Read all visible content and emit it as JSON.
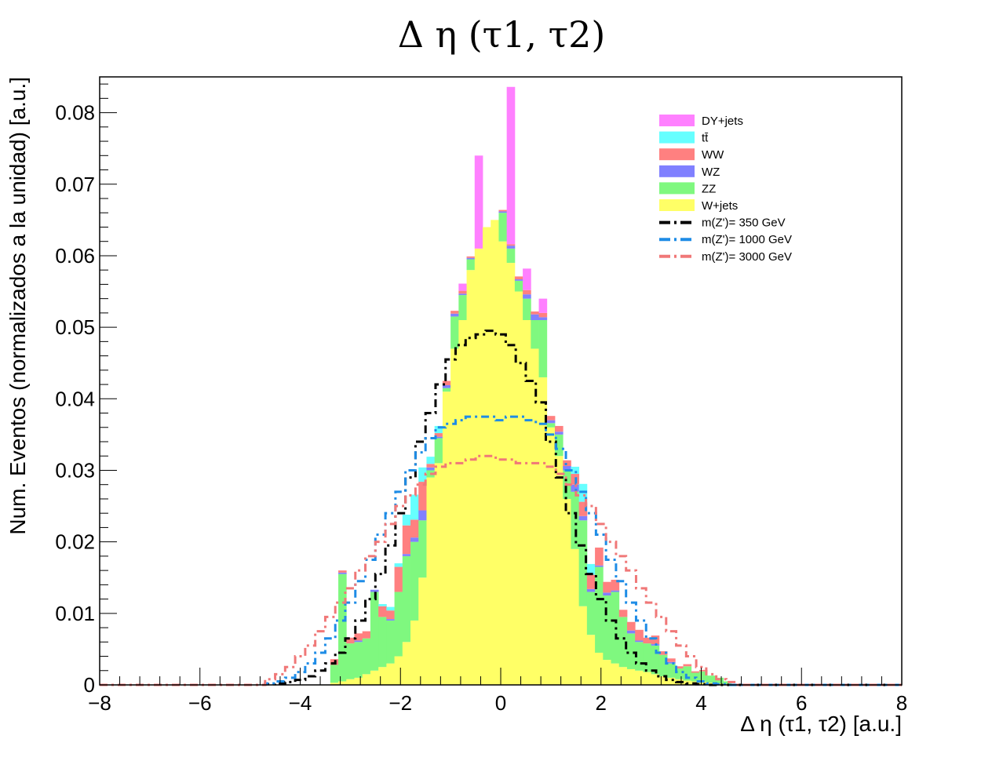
{
  "chart_data": {
    "type": "bar",
    "title": "Δ η (τ1, τ2)",
    "xlabel": "Δ η (τ1, τ2) [a.u.]",
    "ylabel": "Num. Eventos (normalizados a la unidad) [a.u.]",
    "xlim": [
      -8,
      8
    ],
    "ylim": [
      0,
      0.085
    ],
    "x_ticks": [
      "−8",
      "−6",
      "−4",
      "−2",
      "0",
      "2",
      "4",
      "6",
      "8"
    ],
    "y_ticks": [
      "0",
      "0.01",
      "0.02",
      "0.03",
      "0.04",
      "0.05",
      "0.06",
      "0.07",
      "0.08"
    ],
    "grid": false,
    "legend_position": "top-right",
    "stacked": true,
    "x": [
      -3.32,
      -3.16,
      -3.0,
      -2.84,
      -2.68,
      -2.52,
      -2.36,
      -2.2,
      -2.04,
      -1.88,
      -1.72,
      -1.56,
      -1.4,
      -1.24,
      -1.08,
      -0.92,
      -0.76,
      -0.6,
      -0.44,
      -0.28,
      -0.12,
      0.04,
      0.2,
      0.36,
      0.52,
      0.68,
      0.84,
      1.0,
      1.16,
      1.32,
      1.48,
      1.64,
      1.8,
      1.96,
      2.12,
      2.28,
      2.44,
      2.6,
      2.76,
      2.92,
      3.08,
      3.24,
      3.4,
      3.56,
      3.72,
      3.88,
      4.04,
      4.2,
      4.36,
      4.52
    ],
    "series": [
      {
        "name": "W+jets",
        "color": "#ffff66",
        "values": [
          0.0003,
          0.0005,
          0.0008,
          0.001,
          0.0015,
          0.002,
          0.0025,
          0.003,
          0.004,
          0.006,
          0.009,
          0.015,
          0.029,
          0.031,
          0.041,
          0.047,
          0.051,
          0.058,
          0.061,
          0.064,
          0.065,
          0.062,
          0.059,
          0.055,
          0.051,
          0.047,
          0.043,
          0.036,
          0.032,
          0.026,
          0.019,
          0.011,
          0.007,
          0.0045,
          0.0035,
          0.003,
          0.0025,
          0.0022,
          0.002,
          0.0018,
          0.0015,
          0.0012,
          0.001,
          0.0008,
          0.0006,
          0.0005,
          0.0004,
          0.0003,
          0.0002,
          0.0001
        ]
      },
      {
        "name": "ZZ",
        "color": "#7ff87f",
        "values": [
          0.0025,
          0.015,
          0.005,
          0.005,
          0.005,
          0.011,
          0.007,
          0.006,
          0.009,
          0.012,
          0.011,
          0.008,
          0.001,
          0.0035,
          0.0005,
          0.0045,
          0.0035,
          0.0015,
          0.0,
          0.0,
          0.0,
          0.004,
          0.002,
          0.0015,
          0.003,
          0.004,
          0.008,
          0.0006,
          0.003,
          0.004,
          0.008,
          0.012,
          0.006,
          0.012,
          0.009,
          0.01,
          0.007,
          0.005,
          0.004,
          0.004,
          0.004,
          0.003,
          0.002,
          0.0015,
          0.002,
          0.0012,
          0.0015,
          0.001,
          0.0008,
          0.0004
        ]
      },
      {
        "name": "WZ",
        "color": "#8080ff",
        "values": [
          0.0,
          0.0002,
          0.0,
          0.0002,
          0.0,
          0.0003,
          0.0,
          0.0002,
          0.0,
          0.0003,
          0.0006,
          0.0014,
          0.0004,
          0.0002,
          0.0004,
          0.0004,
          0.0002,
          0.0002,
          0.0,
          0.0,
          0.0,
          0.0002,
          0.0004,
          0.0002,
          0.0006,
          0.0008,
          0.0004,
          0.0004,
          0.0004,
          0.0006,
          0.001,
          0.0006,
          0.0004,
          0.0002,
          0.0004,
          0.0002,
          0.0,
          0.0004,
          0.0002,
          0.0,
          0.0002,
          0.0,
          0.0002,
          0.0,
          0.0,
          0.0,
          0.0,
          0.0,
          0.0,
          0.0
        ]
      },
      {
        "name": "WW",
        "color": "#ff8080",
        "values": [
          0.0008,
          0.0003,
          0.0008,
          0.001,
          0.001,
          0.0,
          0.0015,
          0.0012,
          0.0035,
          0.004,
          0.0025,
          0.004,
          0.0005,
          0.0005,
          0.0006,
          0.0004,
          0.0004,
          0.0002,
          0.0,
          0.0,
          0.0,
          0.0002,
          0.0002,
          0.0004,
          0.0006,
          0.0004,
          0.0006,
          0.0006,
          0.0008,
          0.0008,
          0.0015,
          0.002,
          0.002,
          0.0025,
          0.0015,
          0.0015,
          0.001,
          0.0012,
          0.0015,
          0.0008,
          0.0012,
          0.0005,
          0.0005,
          0.0003,
          0.0003,
          0.0002,
          0.0002,
          0.0,
          0.0,
          0.0
        ]
      },
      {
        "name": "tt̄",
        "color": "#66ffff",
        "values": [
          0.0,
          0.0,
          0.0,
          0.0,
          0.0,
          0.0,
          0.0003,
          0.0005,
          0.0005,
          0.0015,
          0.0035,
          0.002,
          0.001,
          0.001,
          0.0,
          0.0,
          0.0,
          0.0,
          0.0,
          0.0,
          0.0,
          0.0,
          0.0,
          0.0,
          0.0,
          0.0,
          0.0,
          0.0,
          0.0,
          0.0,
          0.001,
          0.0025,
          0.0015,
          0.0,
          0.0,
          0.0,
          0.0,
          0.0,
          0.0,
          0.0,
          0.0,
          0.0,
          0.0,
          0.0,
          0.0,
          0.0,
          0.0,
          0.0,
          0.0,
          0.0
        ]
      },
      {
        "name": "DY+jets",
        "color": "#ff80ff",
        "values": [
          0.0,
          0.0,
          0.0,
          0.0,
          0.0,
          0.0,
          0.0,
          0.0,
          0.0,
          0.0,
          0.0,
          0.0,
          0.0,
          0.0,
          0.0,
          0.0,
          0.001,
          0.0,
          0.013,
          0.0,
          0.0,
          0.0,
          0.022,
          0.0,
          0.003,
          0.0,
          0.002,
          0.0,
          0.0,
          0.0,
          0.0,
          0.0,
          0.0,
          0.0,
          0.0,
          0.0,
          0.0,
          0.0,
          0.0,
          0.0,
          0.0,
          0.0,
          0.0,
          0.0,
          0.0,
          0.0,
          0.0,
          0.0,
          0.0,
          0.0
        ]
      }
    ],
    "signals": [
      {
        "name": "m(Z')= 350 GeV",
        "color": "#000000",
        "x": [
          -4.6,
          -4.4,
          -4.2,
          -4.0,
          -3.8,
          -3.6,
          -3.4,
          -3.2,
          -3.0,
          -2.8,
          -2.6,
          -2.4,
          -2.2,
          -2.0,
          -1.8,
          -1.6,
          -1.4,
          -1.2,
          -1.0,
          -0.8,
          -0.6,
          -0.4,
          -0.2,
          0.0,
          0.2,
          0.4,
          0.6,
          0.8,
          1.0,
          1.2,
          1.4,
          1.6,
          1.8,
          2.0,
          2.2,
          2.4,
          2.6,
          2.8,
          3.0,
          3.2,
          3.4,
          3.6,
          3.8,
          4.0,
          4.2,
          4.4,
          4.6
        ],
        "values": [
          0.0001,
          0.0002,
          0.0004,
          0.0007,
          0.0012,
          0.002,
          0.003,
          0.0045,
          0.0065,
          0.009,
          0.012,
          0.0155,
          0.0195,
          0.024,
          0.029,
          0.034,
          0.038,
          0.042,
          0.0455,
          0.0475,
          0.0485,
          0.049,
          0.0495,
          0.049,
          0.0475,
          0.045,
          0.0425,
          0.0395,
          0.034,
          0.029,
          0.024,
          0.0195,
          0.0155,
          0.012,
          0.009,
          0.0065,
          0.0045,
          0.003,
          0.002,
          0.0012,
          0.0007,
          0.0004,
          0.0002,
          0.0001,
          0.0,
          0.0,
          0.0
        ]
      },
      {
        "name": "m(Z')= 1000 GeV",
        "color": "#1e8ce6",
        "x": [
          -4.6,
          -4.4,
          -4.2,
          -4.0,
          -3.8,
          -3.6,
          -3.4,
          -3.2,
          -3.0,
          -2.8,
          -2.6,
          -2.4,
          -2.2,
          -2.0,
          -1.8,
          -1.6,
          -1.4,
          -1.2,
          -1.0,
          -0.8,
          -0.6,
          -0.4,
          -0.2,
          0.0,
          0.2,
          0.4,
          0.6,
          0.8,
          1.0,
          1.2,
          1.4,
          1.6,
          1.8,
          2.0,
          2.2,
          2.4,
          2.6,
          2.8,
          3.0,
          3.2,
          3.4,
          3.6,
          3.8,
          4.0,
          4.2,
          4.4,
          4.6
        ],
        "values": [
          0.0002,
          0.0005,
          0.001,
          0.0018,
          0.003,
          0.0045,
          0.0065,
          0.009,
          0.0115,
          0.0145,
          0.0175,
          0.021,
          0.024,
          0.027,
          0.03,
          0.0325,
          0.0345,
          0.036,
          0.0365,
          0.037,
          0.0375,
          0.0375,
          0.0375,
          0.037,
          0.0375,
          0.0375,
          0.037,
          0.0365,
          0.035,
          0.033,
          0.03,
          0.027,
          0.024,
          0.021,
          0.0175,
          0.0145,
          0.0115,
          0.009,
          0.0065,
          0.0045,
          0.003,
          0.0018,
          0.001,
          0.0005,
          0.0002,
          0.0001,
          0.0
        ]
      },
      {
        "name": "m(Z')= 3000 GeV",
        "color": "#f07878",
        "x": [
          -4.6,
          -4.4,
          -4.2,
          -4.0,
          -3.8,
          -3.6,
          -3.4,
          -3.2,
          -3.0,
          -2.8,
          -2.6,
          -2.4,
          -2.2,
          -2.0,
          -1.8,
          -1.6,
          -1.4,
          -1.2,
          -1.0,
          -0.8,
          -0.6,
          -0.4,
          -0.2,
          0.0,
          0.2,
          0.4,
          0.6,
          0.8,
          1.0,
          1.2,
          1.4,
          1.6,
          1.8,
          2.0,
          2.2,
          2.4,
          2.6,
          2.8,
          3.0,
          3.2,
          3.4,
          3.6,
          3.8,
          4.0,
          4.2,
          4.4,
          4.6
        ],
        "values": [
          0.0008,
          0.0015,
          0.0025,
          0.004,
          0.0055,
          0.0075,
          0.0095,
          0.0115,
          0.0135,
          0.016,
          0.018,
          0.02,
          0.0225,
          0.025,
          0.0265,
          0.028,
          0.0295,
          0.0305,
          0.031,
          0.031,
          0.0315,
          0.032,
          0.032,
          0.0315,
          0.0315,
          0.031,
          0.031,
          0.031,
          0.0305,
          0.0295,
          0.028,
          0.0265,
          0.025,
          0.0225,
          0.02,
          0.018,
          0.016,
          0.0135,
          0.0115,
          0.0095,
          0.0075,
          0.0055,
          0.004,
          0.0025,
          0.0015,
          0.0008,
          0.0004
        ]
      }
    ]
  }
}
